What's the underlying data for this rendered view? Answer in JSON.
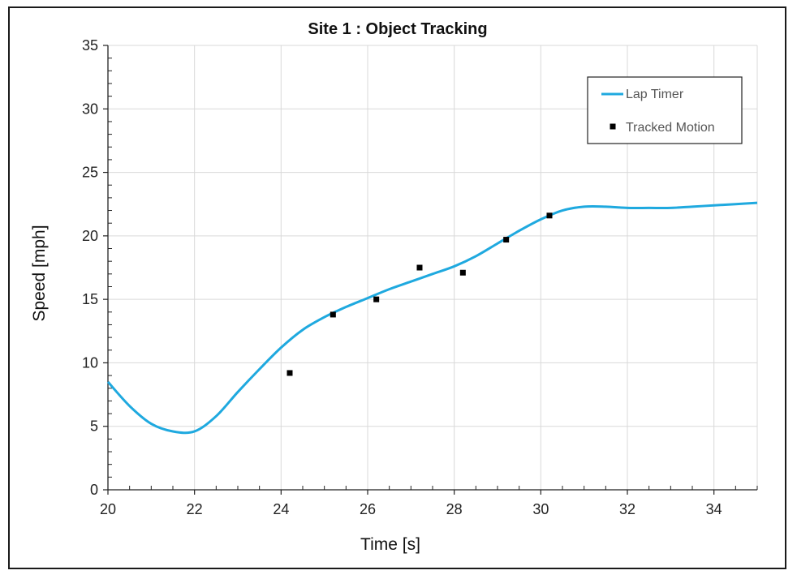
{
  "chart_data": {
    "type": "line",
    "title": "Site 1 : Object Tracking",
    "xlabel": "Time [s]",
    "ylabel": "Speed [mph]",
    "xlim": [
      20,
      35
    ],
    "ylim": [
      0,
      35
    ],
    "x_ticks": [
      20,
      22,
      24,
      26,
      28,
      30,
      32,
      34
    ],
    "y_ticks": [
      0,
      5,
      10,
      15,
      20,
      25,
      30,
      35
    ],
    "grid": true,
    "legend_position": "top-right",
    "series": [
      {
        "name": "Lap Timer",
        "kind": "line",
        "color": "#1fa9df",
        "x": [
          20.0,
          20.5,
          21.0,
          21.5,
          22.0,
          22.5,
          23.0,
          23.5,
          24.0,
          24.5,
          25.0,
          25.5,
          26.0,
          26.5,
          27.0,
          27.5,
          28.0,
          28.5,
          29.0,
          29.5,
          30.0,
          30.5,
          31.0,
          31.5,
          32.0,
          32.5,
          33.0,
          33.5,
          34.0,
          34.5,
          35.0
        ],
        "y": [
          8.5,
          6.6,
          5.2,
          4.6,
          4.6,
          5.8,
          7.7,
          9.5,
          11.2,
          12.6,
          13.6,
          14.4,
          15.1,
          15.8,
          16.4,
          17.0,
          17.6,
          18.4,
          19.4,
          20.4,
          21.3,
          22.0,
          22.3,
          22.3,
          22.2,
          22.2,
          22.2,
          22.3,
          22.4,
          22.5,
          22.6
        ]
      },
      {
        "name": "Tracked Motion",
        "kind": "scatter",
        "color": "#000000",
        "x": [
          24.2,
          25.2,
          26.2,
          27.2,
          28.2,
          29.2,
          30.2
        ],
        "y": [
          9.2,
          13.8,
          15.0,
          17.5,
          17.1,
          19.7,
          21.6
        ]
      }
    ]
  }
}
